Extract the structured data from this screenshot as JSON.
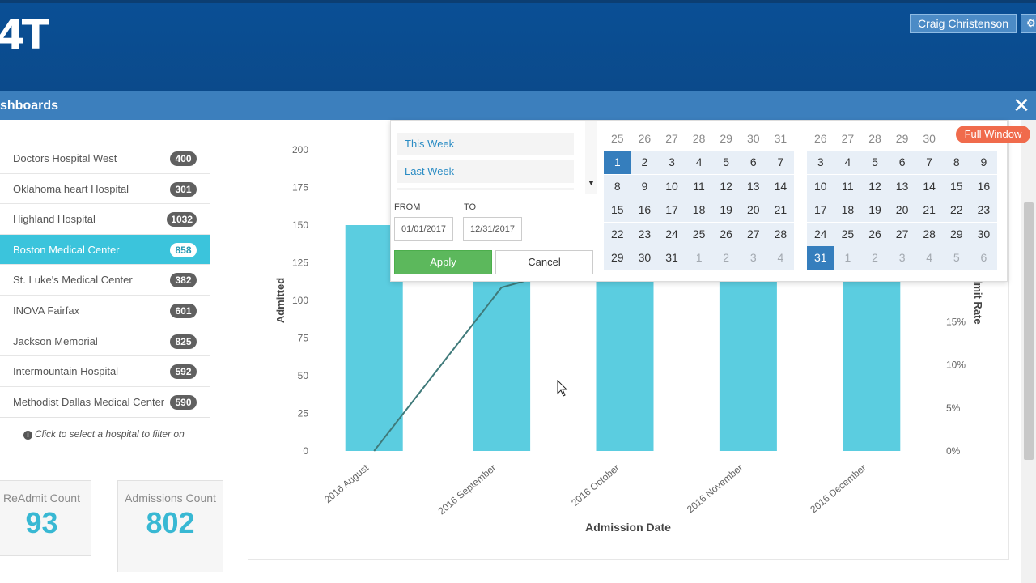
{
  "header": {
    "logo_text": "4T",
    "user_name": "Craig Christenson",
    "settings_icon": "gear-icon"
  },
  "modal": {
    "title": "shboards",
    "close_icon": "close-icon"
  },
  "hospitals": {
    "items": [
      {
        "name": "Doctors Hospital West",
        "count": "400"
      },
      {
        "name": "Oklahoma heart Hospital",
        "count": "301"
      },
      {
        "name": "Highland Hospital",
        "count": "1032"
      },
      {
        "name": "Boston Medical Center",
        "count": "858"
      },
      {
        "name": "St. Luke's Medical Center",
        "count": "382"
      },
      {
        "name": "INOVA Fairfax",
        "count": "601"
      },
      {
        "name": "Jackson Memorial",
        "count": "825"
      },
      {
        "name": "Intermountain Hospital",
        "count": "592"
      },
      {
        "name": "Methodist Dallas Medical Center",
        "count": "590"
      }
    ],
    "selected": "Boston Medical Center",
    "hint": "Click to select a hospital to filter on"
  },
  "kpis": {
    "readmit_label": "ReAdmit Count",
    "readmit_value": "93",
    "admissions_label": "Admissions Count",
    "admissions_value": "802"
  },
  "date_picker": {
    "ranges": [
      "This Week",
      "Last Week"
    ],
    "from_label": "FROM",
    "to_label": "TO",
    "from_value": "01/01/2017",
    "to_value": "12/31/2017",
    "apply_label": "Apply",
    "cancel_label": "Cancel",
    "left_calendar": {
      "header_row": [
        "25",
        "26",
        "27",
        "28",
        "29",
        "30",
        "31"
      ],
      "weeks": [
        [
          "1",
          "2",
          "3",
          "4",
          "5",
          "6",
          "7"
        ],
        [
          "8",
          "9",
          "10",
          "11",
          "12",
          "13",
          "14"
        ],
        [
          "15",
          "16",
          "17",
          "18",
          "19",
          "20",
          "21"
        ],
        [
          "22",
          "23",
          "24",
          "25",
          "26",
          "27",
          "28"
        ],
        [
          "29",
          "30",
          "31",
          "1",
          "2",
          "3",
          "4"
        ]
      ],
      "selected": "1"
    },
    "right_calendar": {
      "header_row": [
        "26",
        "27",
        "28",
        "29",
        "30",
        "",
        ""
      ],
      "weeks": [
        [
          "3",
          "4",
          "5",
          "6",
          "7",
          "8",
          "9"
        ],
        [
          "10",
          "11",
          "12",
          "13",
          "14",
          "15",
          "16"
        ],
        [
          "17",
          "18",
          "19",
          "20",
          "21",
          "22",
          "23"
        ],
        [
          "24",
          "25",
          "26",
          "27",
          "28",
          "29",
          "30"
        ],
        [
          "31",
          "1",
          "2",
          "3",
          "4",
          "5",
          "6"
        ]
      ],
      "selected": "31"
    }
  },
  "full_window_label": "Full Window",
  "colors": {
    "header_blue": "#0b4a8b",
    "modal_blue": "#3c7fbd",
    "active_teal": "#3bc4dc",
    "bar_color": "#5bcde0",
    "line_color": "#3f7a7a",
    "apply_green": "#5cb85c",
    "badge_orange": "#f06b4c",
    "kpi_value": "#38b8d3"
  },
  "chart_data": {
    "type": "bar",
    "categories": [
      "2016 August",
      "2016 September",
      "2016 October",
      "2016 November",
      "2016 December"
    ],
    "series": [
      {
        "name": "Admitted",
        "values": [
          150,
          150,
          150,
          150,
          150
        ],
        "axis": "left"
      },
      {
        "name": "Readmit Rate",
        "type": "line",
        "values": [
          0,
          19,
          23,
          null,
          null
        ],
        "axis": "right",
        "unit": "%"
      }
    ],
    "xlabel": "Admission Date",
    "ylabel": "Admitted",
    "y2label": "dmit Rate",
    "yticks": [
      "0",
      "25",
      "50",
      "75",
      "100",
      "125",
      "150",
      "175",
      "200"
    ],
    "y2ticks": [
      "0%",
      "5%",
      "10%",
      "15%"
    ],
    "ylim": [
      0,
      200
    ],
    "y2lim": [
      0,
      35
    ],
    "grid": false
  }
}
